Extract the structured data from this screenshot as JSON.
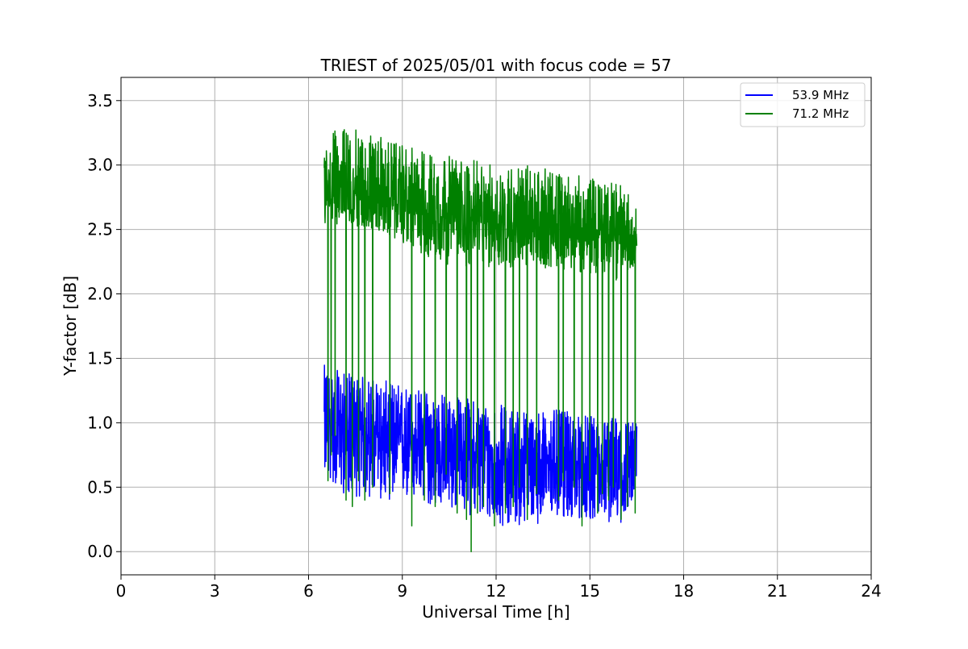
{
  "chart_data": {
    "type": "line",
    "title": "TRIEST of 2025/05/01 with focus code = 57",
    "xlabel": "Universal Time [h]",
    "ylabel": "Y-factor [dB]",
    "xlim": [
      0,
      24
    ],
    "ylim": [
      -0.18,
      3.68
    ],
    "xticks": [
      0,
      3,
      6,
      9,
      12,
      15,
      18,
      21,
      24
    ],
    "xtick_labels": [
      "0",
      "3",
      "6",
      "9",
      "12",
      "15",
      "18",
      "21",
      "24"
    ],
    "yticks": [
      0.0,
      0.5,
      1.0,
      1.5,
      2.0,
      2.5,
      3.0,
      3.5
    ],
    "ytick_labels": [
      "0.0",
      "0.5",
      "1.0",
      "1.5",
      "2.0",
      "2.5",
      "3.0",
      "3.5"
    ],
    "grid": true,
    "legend_position": "top-right",
    "series": [
      {
        "name": "53.9 MHz",
        "color": "#0000ff",
        "x_range": [
          6.5,
          16.5
        ],
        "envelope_x": [
          6.5,
          7.0,
          8.0,
          9.0,
          10.0,
          11.0,
          12.0,
          13.0,
          14.0,
          15.0,
          16.0,
          16.5
        ],
        "envelope_upper": [
          1.45,
          1.4,
          1.35,
          1.3,
          1.25,
          1.2,
          1.15,
          1.1,
          1.1,
          1.05,
          1.05,
          1.0
        ],
        "envelope_lower": [
          0.6,
          0.45,
          0.4,
          0.4,
          0.35,
          0.3,
          0.2,
          0.2,
          0.25,
          0.25,
          0.2,
          0.5
        ],
        "mean_y": [
          1.0,
          0.95,
          0.9,
          0.85,
          0.8,
          0.75,
          0.7,
          0.7,
          0.7,
          0.65,
          0.65,
          0.7
        ]
      },
      {
        "name": "71.2 MHz",
        "color": "#008000",
        "x_range": [
          6.5,
          16.5
        ],
        "envelope_x": [
          6.5,
          7.0,
          8.0,
          9.0,
          10.0,
          11.0,
          12.0,
          13.0,
          14.0,
          15.0,
          16.0,
          16.5
        ],
        "envelope_upper": [
          3.2,
          3.3,
          3.25,
          3.15,
          3.1,
          3.05,
          3.0,
          3.0,
          2.95,
          2.9,
          2.85,
          2.7
        ],
        "envelope_lower": [
          2.5,
          2.55,
          2.5,
          2.4,
          2.25,
          2.2,
          2.2,
          2.2,
          2.2,
          2.15,
          2.1,
          2.25
        ],
        "mean_y": [
          2.85,
          2.85,
          2.75,
          2.7,
          2.65,
          2.6,
          2.55,
          2.55,
          2.5,
          2.5,
          2.45,
          2.45
        ],
        "dropout_x": [
          6.62,
          6.72,
          6.85,
          7.2,
          7.4,
          7.6,
          7.8,
          8.05,
          8.6,
          9.3,
          9.7,
          10.05,
          10.4,
          10.75,
          11.05,
          11.2,
          11.4,
          11.6,
          11.95,
          12.3,
          12.55,
          12.75,
          13.0,
          13.3,
          14.0,
          14.15,
          14.5,
          14.75,
          15.0,
          15.25,
          15.4,
          15.6,
          15.75,
          16.0,
          16.2,
          16.45
        ],
        "dropout_y": [
          0.55,
          0.75,
          0.9,
          0.4,
          0.35,
          0.55,
          0.4,
          0.5,
          0.45,
          0.2,
          0.4,
          0.35,
          0.6,
          0.3,
          0.25,
          0.0,
          0.3,
          0.35,
          0.2,
          0.3,
          0.35,
          0.5,
          0.25,
          0.45,
          0.4,
          0.55,
          0.5,
          0.2,
          0.55,
          0.3,
          0.45,
          0.4,
          0.5,
          0.25,
          0.35,
          0.3
        ]
      }
    ]
  }
}
